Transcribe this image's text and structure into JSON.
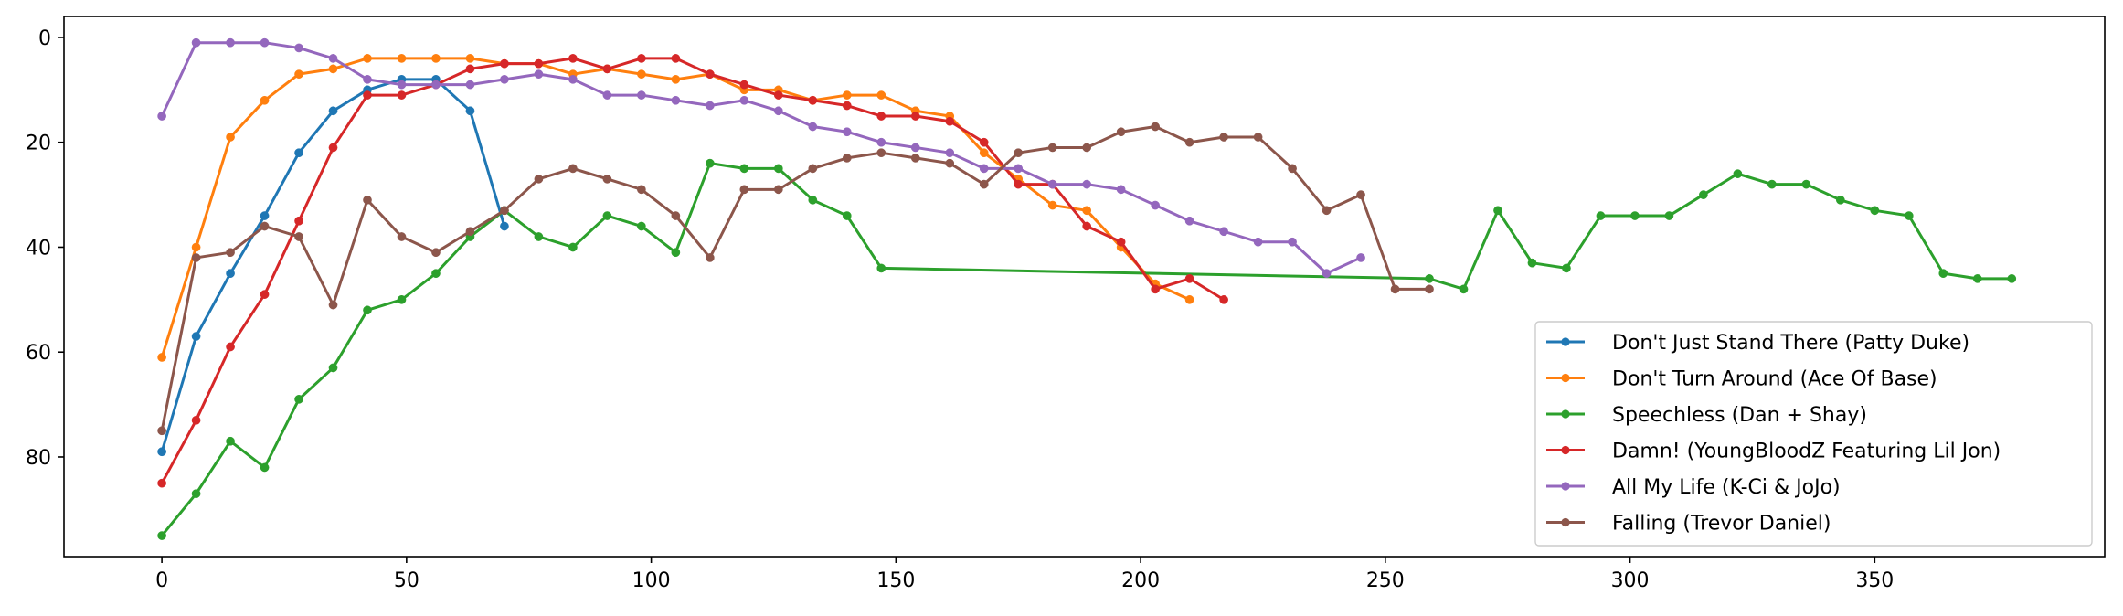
{
  "chart_data": {
    "type": "line",
    "title": "",
    "xlabel": "",
    "ylabel": "",
    "xlim": [
      -20,
      397
    ],
    "ylim": [
      99,
      -4
    ],
    "y_inverted": true,
    "grid": false,
    "legend_position": "lower right",
    "x_ticks": [
      0,
      50,
      100,
      150,
      200,
      250,
      300,
      350
    ],
    "y_ticks": [
      0,
      20,
      40,
      60,
      80
    ],
    "series": [
      {
        "name": "Don't Just Stand There (Patty Duke)",
        "color": "#1f77b4",
        "x": [
          0,
          7,
          14,
          21,
          28,
          35,
          42,
          49,
          56,
          63,
          70
        ],
        "y": [
          79,
          57,
          45,
          34,
          22,
          14,
          10,
          8,
          8,
          14,
          36
        ]
      },
      {
        "name": "Don't Turn Around (Ace Of Base)",
        "color": "#ff7f0e",
        "x": [
          0,
          7,
          14,
          21,
          28,
          35,
          42,
          49,
          56,
          63,
          70,
          77,
          84,
          91,
          98,
          105,
          112,
          119,
          126,
          133,
          140,
          147,
          154,
          161,
          168,
          175,
          182,
          189,
          196,
          203,
          210
        ],
        "y": [
          61,
          40,
          19,
          12,
          7,
          6,
          4,
          4,
          4,
          4,
          5,
          5,
          7,
          6,
          7,
          8,
          7,
          10,
          10,
          12,
          11,
          11,
          14,
          15,
          22,
          27,
          32,
          33,
          40,
          47,
          50
        ]
      },
      {
        "name": "Speechless (Dan + Shay)",
        "color": "#2ca02c",
        "x": [
          0,
          7,
          14,
          21,
          28,
          35,
          42,
          49,
          56,
          63,
          70,
          77,
          84,
          91,
          98,
          105,
          112,
          119,
          126,
          133,
          140,
          147,
          259,
          266,
          273,
          280,
          287,
          294,
          301,
          308,
          315,
          322,
          329,
          336,
          343,
          350,
          357,
          364,
          371,
          378
        ],
        "y": [
          95,
          87,
          77,
          82,
          69,
          63,
          52,
          50,
          45,
          38,
          33,
          38,
          40,
          34,
          36,
          41,
          24,
          25,
          25,
          31,
          34,
          44,
          46,
          48,
          33,
          43,
          44,
          34,
          34,
          34,
          30,
          26,
          28,
          28,
          31,
          33,
          34,
          45,
          46,
          46
        ]
      },
      {
        "name": "Damn! (YoungBloodZ Featuring Lil Jon)",
        "color": "#d62728",
        "x": [
          0,
          7,
          14,
          21,
          28,
          35,
          42,
          49,
          56,
          63,
          70,
          77,
          84,
          91,
          98,
          105,
          112,
          119,
          126,
          133,
          140,
          147,
          154,
          161,
          168,
          175,
          182,
          189,
          196,
          203,
          210,
          217
        ],
        "y": [
          85,
          73,
          59,
          49,
          35,
          21,
          11,
          11,
          9,
          6,
          5,
          5,
          4,
          6,
          4,
          4,
          7,
          9,
          11,
          12,
          13,
          15,
          15,
          16,
          20,
          28,
          28,
          36,
          39,
          48,
          46,
          50
        ]
      },
      {
        "name": "All My Life (K-Ci & JoJo)",
        "color": "#9467bd",
        "x": [
          0,
          7,
          14,
          21,
          28,
          35,
          42,
          49,
          56,
          63,
          70,
          77,
          84,
          91,
          98,
          105,
          112,
          119,
          126,
          133,
          140,
          147,
          154,
          161,
          168,
          175,
          182,
          189,
          196,
          203,
          210,
          217,
          224,
          231,
          238,
          245
        ],
        "y": [
          15,
          1,
          1,
          1,
          2,
          4,
          8,
          9,
          9,
          9,
          8,
          7,
          8,
          11,
          11,
          12,
          13,
          12,
          14,
          17,
          18,
          20,
          21,
          22,
          25,
          25,
          28,
          28,
          29,
          32,
          35,
          37,
          39,
          39,
          45,
          42
        ]
      },
      {
        "name": "Falling (Trevor Daniel)",
        "color": "#8c564b",
        "x": [
          0,
          7,
          14,
          21,
          28,
          35,
          42,
          49,
          56,
          63,
          70,
          77,
          84,
          91,
          98,
          105,
          112,
          119,
          126,
          133,
          140,
          147,
          154,
          161,
          168,
          175,
          182,
          189,
          196,
          203,
          210,
          217,
          224,
          231,
          238,
          245,
          252,
          259
        ],
        "y": [
          75,
          42,
          41,
          36,
          38,
          51,
          31,
          38,
          41,
          37,
          33,
          27,
          25,
          27,
          29,
          34,
          42,
          29,
          29,
          25,
          23,
          22,
          23,
          24,
          28,
          22,
          21,
          21,
          18,
          17,
          20,
          19,
          19,
          25,
          33,
          30,
          48,
          48
        ]
      }
    ]
  }
}
